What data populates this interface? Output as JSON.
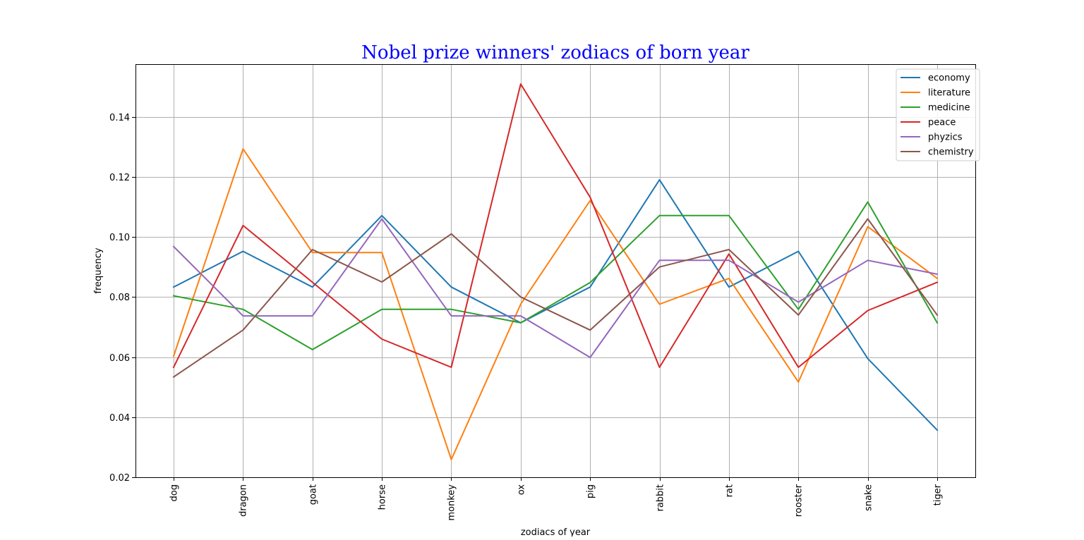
{
  "chart_data": {
    "type": "line",
    "title": "Nobel prize winners' zodiacs of born year",
    "title_color": "#0000ff",
    "xlabel": "zodiacs of year",
    "ylabel": "frequency",
    "categories": [
      "dog",
      "dragon",
      "goat",
      "horse",
      "monkey",
      "ox",
      "pig",
      "rabbit",
      "rat",
      "rooster",
      "snake",
      "tiger"
    ],
    "ylim": [
      0.02,
      0.1575
    ],
    "yticks": [
      0.02,
      0.04,
      0.06,
      0.08,
      0.1,
      0.12,
      0.14
    ],
    "ytick_labels": [
      "0.02",
      "0.04",
      "0.06",
      "0.08",
      "0.10",
      "0.12",
      "0.14"
    ],
    "grid": true,
    "legend_position": "top-right",
    "series": [
      {
        "name": "economy",
        "color": "#1f77b4",
        "values": [
          0.0833,
          0.0952,
          0.0833,
          0.1071,
          0.0833,
          0.0714,
          0.0833,
          0.119,
          0.0833,
          0.0952,
          0.0595,
          0.0357
        ]
      },
      {
        "name": "literature",
        "color": "#ff7f0e",
        "values": [
          0.0603,
          0.1293,
          0.0948,
          0.0948,
          0.0259,
          0.0776,
          0.1121,
          0.0776,
          0.0862,
          0.0517,
          0.1034,
          0.0862
        ]
      },
      {
        "name": "medicine",
        "color": "#2ca02c",
        "values": [
          0.0804,
          0.0759,
          0.0625,
          0.0759,
          0.0759,
          0.0714,
          0.0848,
          0.1071,
          0.1071,
          0.0759,
          0.1116,
          0.0714
        ]
      },
      {
        "name": "peace",
        "color": "#d62728",
        "values": [
          0.0566,
          0.1038,
          0.0849,
          0.066,
          0.0566,
          0.1509,
          0.1132,
          0.0566,
          0.0943,
          0.0566,
          0.0755,
          0.0849
        ]
      },
      {
        "name": "phyzics",
        "color": "#9467bd",
        "values": [
          0.0968,
          0.0737,
          0.0737,
          0.106,
          0.0737,
          0.0737,
          0.0599,
          0.0922,
          0.0922,
          0.0783,
          0.0922,
          0.0876
        ]
      },
      {
        "name": "chemistry",
        "color": "#8c564b",
        "values": [
          0.0534,
          0.069,
          0.0958,
          0.085,
          0.101,
          0.08,
          0.069,
          0.09,
          0.0958,
          0.074,
          0.106,
          0.074
        ]
      }
    ]
  }
}
